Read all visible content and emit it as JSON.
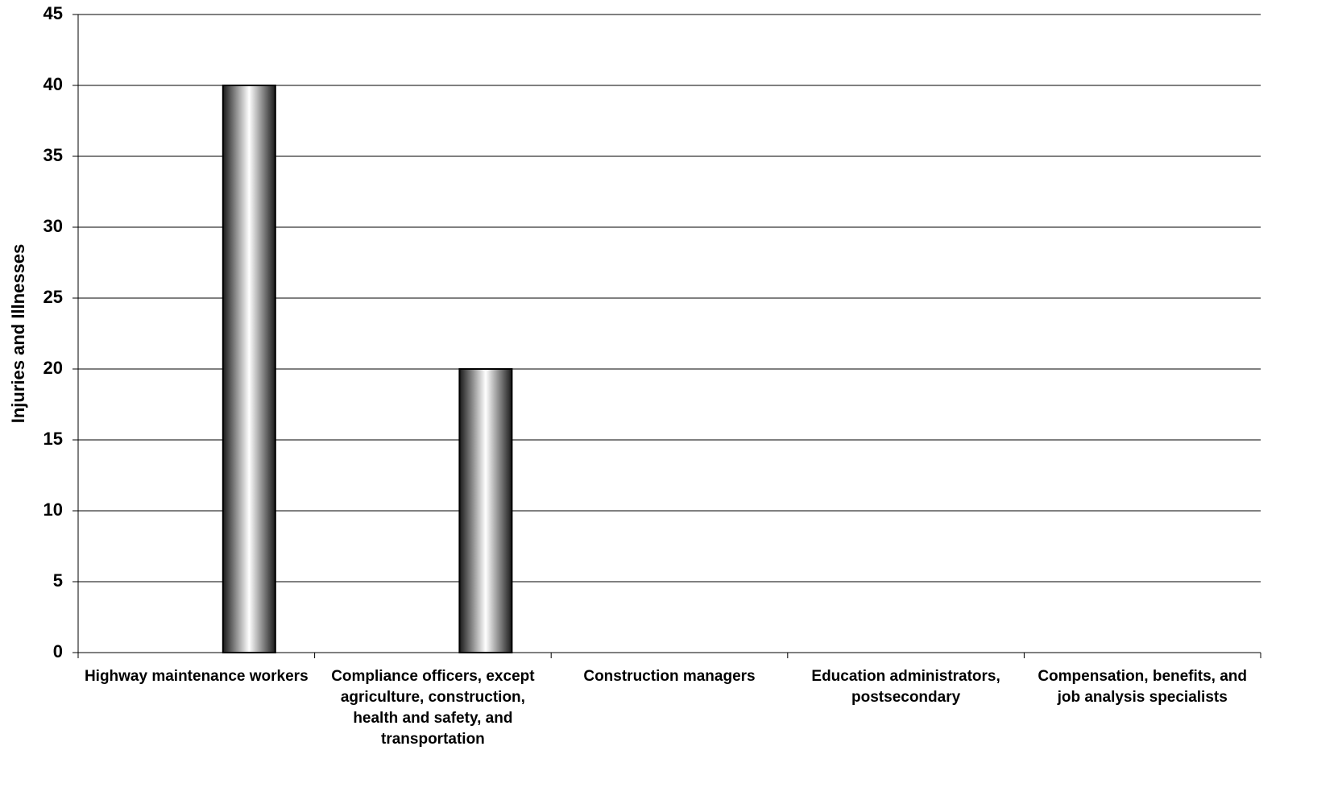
{
  "chart_data": {
    "type": "bar",
    "y_label": "Injuries and Illnesses",
    "categories": [
      "Highway maintenance workers",
      "Compliance officers, except agriculture, construction, health and safety, and transportation",
      "Construction managers",
      "Education administrators, postsecondary",
      "Compensation, benefits, and job analysis specialists"
    ],
    "values": [
      40,
      20,
      0,
      0,
      0
    ],
    "ylim": [
      0,
      45
    ],
    "yticks": [
      0,
      5,
      10,
      15,
      20,
      25,
      30,
      35,
      40,
      45
    ],
    "grid": true
  }
}
